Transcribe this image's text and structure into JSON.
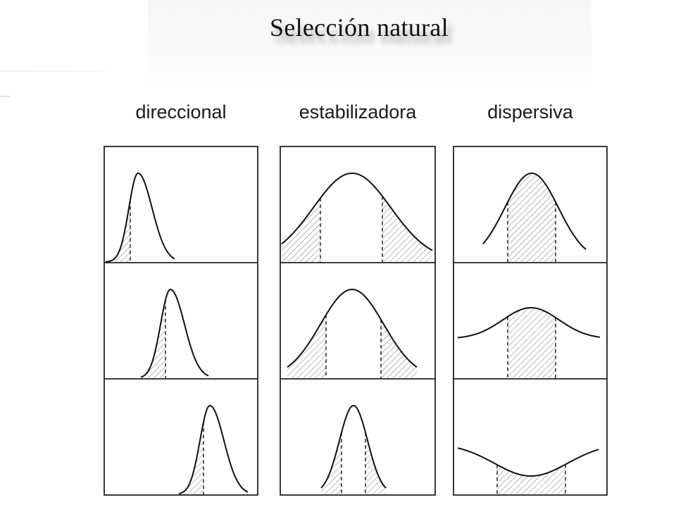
{
  "title": "Selección natural",
  "columns": [
    {
      "label": "direccional"
    },
    {
      "label": "estabilizadora"
    },
    {
      "label": "dispersiva"
    }
  ]
}
